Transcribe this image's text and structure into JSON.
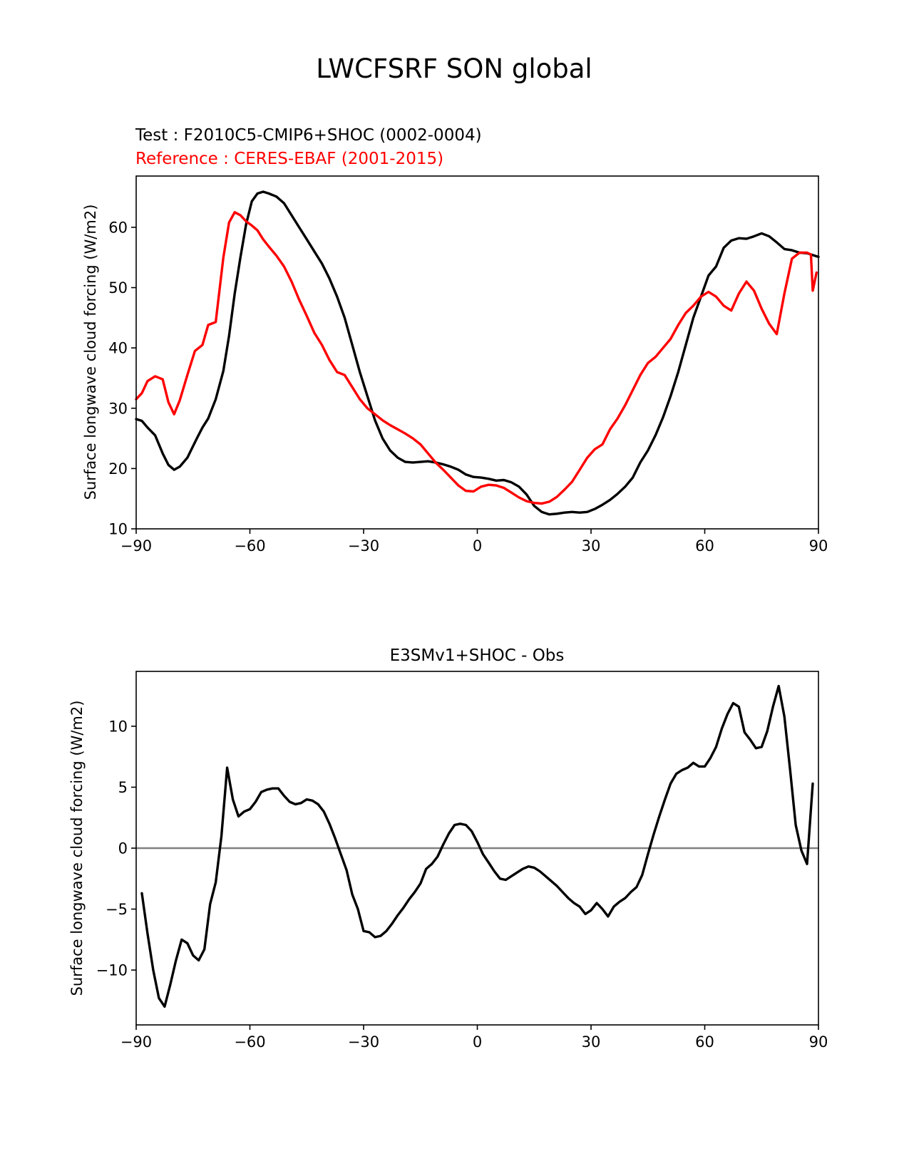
{
  "figure": {
    "title": "LWCFSRF SON global"
  },
  "chart_data": [
    {
      "type": "line",
      "test_label": "Test : F2010C5-CMIP6+SHOC (0002-0004)",
      "reference_label": "Reference : CERES-EBAF (2001-2015)",
      "ylabel": "Surface longwave cloud forcing (W/m2)",
      "xlim": [
        -90,
        90
      ],
      "ylim": [
        10,
        68.5
      ],
      "xticks": [
        -90,
        -60,
        -30,
        0,
        30,
        60,
        90
      ],
      "xtick_labels": [
        "−90",
        "−60",
        "−30",
        "0",
        "30",
        "60",
        "90"
      ],
      "yticks": [
        10,
        20,
        30,
        40,
        50,
        60
      ],
      "ytick_labels": [
        "10",
        "20",
        "30",
        "40",
        "50",
        "60"
      ],
      "grid": false,
      "series": [
        {
          "role": "test",
          "color": "#000000",
          "x": [
            -90,
            -88.5,
            -87,
            -85,
            -83,
            -81.5,
            -80,
            -78.5,
            -76.5,
            -74,
            -72.5,
            -71,
            -69,
            -67,
            -65.5,
            -64,
            -62.5,
            -61,
            -59.5,
            -58,
            -56.5,
            -55,
            -53,
            -51,
            -49,
            -47,
            -45,
            -43,
            -41,
            -39,
            -37,
            -35,
            -33,
            -31,
            -29,
            -27,
            -25,
            -23,
            -21,
            -19,
            -17,
            -15,
            -13,
            -11,
            -9,
            -7,
            -5,
            -3,
            -1,
            1,
            3,
            5,
            7,
            9,
            11,
            13,
            15,
            17,
            19,
            21,
            23,
            25,
            27,
            29,
            31,
            33,
            35,
            37,
            39,
            41,
            43,
            45,
            47,
            49,
            51,
            53,
            55,
            57,
            59,
            61,
            63,
            65,
            67,
            69,
            71,
            73,
            75,
            77,
            79,
            81,
            83,
            85,
            87,
            89,
            90
          ],
          "y": [
            28.2,
            27.9,
            26.8,
            25.5,
            22.5,
            20.6,
            19.8,
            20.3,
            21.8,
            25,
            26.8,
            28.3,
            31.5,
            36.2,
            42,
            49,
            55,
            60.5,
            64.3,
            65.6,
            65.9,
            65.6,
            65.1,
            64,
            62,
            60,
            58,
            56,
            54,
            51.5,
            48.5,
            45,
            40.5,
            36,
            32,
            28,
            25,
            23,
            21.8,
            21.1,
            21,
            21.1,
            21.2,
            21,
            20.7,
            20.3,
            19.8,
            19,
            18.6,
            18.5,
            18.3,
            18,
            18.1,
            17.7,
            17,
            15.7,
            13.8,
            12.8,
            12.4,
            12.5,
            12.7,
            12.8,
            12.7,
            12.8,
            13.3,
            14,
            14.8,
            15.8,
            17,
            18.5,
            21,
            23,
            25.5,
            28.5,
            32,
            36,
            40.5,
            45,
            48.5,
            52,
            53.5,
            56.6,
            57.8,
            58.2,
            58.1,
            58.5,
            59,
            58.5,
            57.5,
            56.4,
            56.2,
            55.8,
            55.7,
            55.3,
            55.1
          ]
        },
        {
          "role": "reference",
          "color": "#ff0000",
          "x": [
            -90,
            -88.5,
            -87,
            -85,
            -83,
            -81.5,
            -80,
            -78.5,
            -76.5,
            -74.5,
            -72.5,
            -71,
            -69,
            -67,
            -65.5,
            -64,
            -62.5,
            -61,
            -59.5,
            -58,
            -56.5,
            -55,
            -53,
            -51,
            -49,
            -47,
            -45,
            -43,
            -41,
            -39,
            -37,
            -35,
            -33,
            -31,
            -29,
            -27,
            -25,
            -23,
            -21,
            -19,
            -17,
            -15,
            -13,
            -11,
            -9,
            -7,
            -5,
            -3,
            -1,
            1,
            3,
            5,
            7,
            9,
            11,
            13,
            15,
            17,
            19,
            21,
            23,
            25,
            27,
            29,
            31,
            33,
            35,
            37,
            39,
            41,
            43,
            45,
            47,
            49,
            51,
            53,
            55,
            57,
            59,
            61,
            63,
            65,
            67,
            69,
            71,
            73,
            75,
            77,
            79,
            81,
            83,
            85,
            87,
            88,
            88.5,
            89.5
          ],
          "y": [
            31.5,
            32.5,
            34.5,
            35.3,
            34.8,
            31,
            29,
            31.3,
            35.5,
            39.5,
            40.5,
            43.8,
            44.3,
            55,
            60.8,
            62.5,
            62,
            61,
            60.3,
            59.5,
            58,
            56.8,
            55.3,
            53.5,
            51,
            48,
            45.3,
            42.5,
            40.5,
            38,
            36,
            35.5,
            33.5,
            31.5,
            30,
            29,
            28,
            27.2,
            26.5,
            25.8,
            25,
            24,
            22.5,
            21,
            19.8,
            18.5,
            17.2,
            16.3,
            16.2,
            17,
            17.3,
            17.2,
            16.8,
            16,
            15.2,
            14.6,
            14.3,
            14.2,
            14.5,
            15.3,
            16.5,
            17.8,
            19.8,
            21.8,
            23.2,
            24,
            26.5,
            28.3,
            30.5,
            33,
            35.5,
            37.5,
            38.5,
            40,
            41.5,
            43.8,
            45.8,
            47,
            48.5,
            49.3,
            48.5,
            47,
            46.2,
            49,
            51,
            49.5,
            46.5,
            44,
            42.3,
            49,
            54.8,
            55.8,
            55.8,
            55.5,
            49.5,
            52.5
          ]
        }
      ]
    },
    {
      "type": "line",
      "title": "E3SMv1+SHOC - Obs",
      "ylabel": "Surface longwave cloud forcing (W/m2)",
      "xlim": [
        -90,
        90
      ],
      "ylim": [
        -14.5,
        14.5
      ],
      "xticks": [
        -90,
        -60,
        -30,
        0,
        30,
        60,
        90
      ],
      "xtick_labels": [
        "−90",
        "−60",
        "−30",
        "0",
        "30",
        "60",
        "90"
      ],
      "yticks": [
        -10,
        -5,
        0,
        5,
        10
      ],
      "ytick_labels": [
        "−10",
        "−5",
        "0",
        "5",
        "10"
      ],
      "grid": false,
      "zero_line_color": "#808080",
      "series": [
        {
          "color": "#000000",
          "x": [
            -88.5,
            -87,
            -85.5,
            -84,
            -82.5,
            -81,
            -79.5,
            -78,
            -76.5,
            -75,
            -73.5,
            -72,
            -70.5,
            -69,
            -67.5,
            -66,
            -64.5,
            -63,
            -61.5,
            -60,
            -58.5,
            -57,
            -55.5,
            -54,
            -52.5,
            -51,
            -49.5,
            -48,
            -46.5,
            -45,
            -43.5,
            -42,
            -40.5,
            -39,
            -37.5,
            -36,
            -34.5,
            -33,
            -31.5,
            -30,
            -28.5,
            -27,
            -25.5,
            -24,
            -22.5,
            -21,
            -19.5,
            -18,
            -16.5,
            -15,
            -13.5,
            -12,
            -10.5,
            -9,
            -7.5,
            -6,
            -4.5,
            -3,
            -1.5,
            0,
            1.5,
            3,
            4.5,
            6,
            7.5,
            9,
            10.5,
            12,
            13.5,
            15,
            16.5,
            18,
            19.5,
            21,
            22.5,
            24,
            25.5,
            27,
            28.5,
            30,
            31.5,
            33,
            34.5,
            36,
            37.5,
            39,
            40.5,
            42,
            43.5,
            45,
            46.5,
            48,
            49.5,
            51,
            52.5,
            54,
            55.5,
            57,
            58.5,
            60,
            61.5,
            63,
            64.5,
            66,
            67.5,
            69,
            70.5,
            72,
            73.5,
            75,
            76.5,
            78,
            79.5,
            81,
            82.5,
            84,
            85.5,
            87,
            88.5
          ],
          "y": [
            -3.7,
            -7,
            -10,
            -12.3,
            -13,
            -11.2,
            -9.2,
            -7.5,
            -7.8,
            -8.8,
            -9.2,
            -8.3,
            -4.6,
            -2.8,
            1,
            6.6,
            4,
            2.6,
            3,
            3.2,
            3.8,
            4.6,
            4.8,
            4.9,
            4.9,
            4.3,
            3.8,
            3.6,
            3.7,
            4,
            3.9,
            3.6,
            3,
            2,
            0.8,
            -0.5,
            -1.8,
            -3.8,
            -5,
            -6.8,
            -6.9,
            -7.3,
            -7.2,
            -6.8,
            -6.2,
            -5.5,
            -4.9,
            -4.2,
            -3.6,
            -2.9,
            -1.7,
            -1.3,
            -0.7,
            0.3,
            1.2,
            1.9,
            2,
            1.9,
            1.4,
            0.5,
            -0.5,
            -1.2,
            -1.9,
            -2.5,
            -2.6,
            -2.3,
            -2,
            -1.7,
            -1.5,
            -1.6,
            -1.9,
            -2.3,
            -2.7,
            -3.1,
            -3.6,
            -4.1,
            -4.5,
            -4.8,
            -5.4,
            -5.1,
            -4.5,
            -5,
            -5.6,
            -4.8,
            -4.4,
            -4.1,
            -3.6,
            -3.2,
            -2.2,
            -0.5,
            1.1,
            2.6,
            4,
            5.3,
            6.1,
            6.4,
            6.6,
            7,
            6.7,
            6.7,
            7.4,
            8.3,
            9.8,
            11,
            11.9,
            11.6,
            9.5,
            8.9,
            8.2,
            8.3,
            9.6,
            11.6,
            13.3,
            10.8,
            6.5,
            1.9,
            -0.2,
            -1.3,
            5.3
          ]
        }
      ]
    }
  ]
}
